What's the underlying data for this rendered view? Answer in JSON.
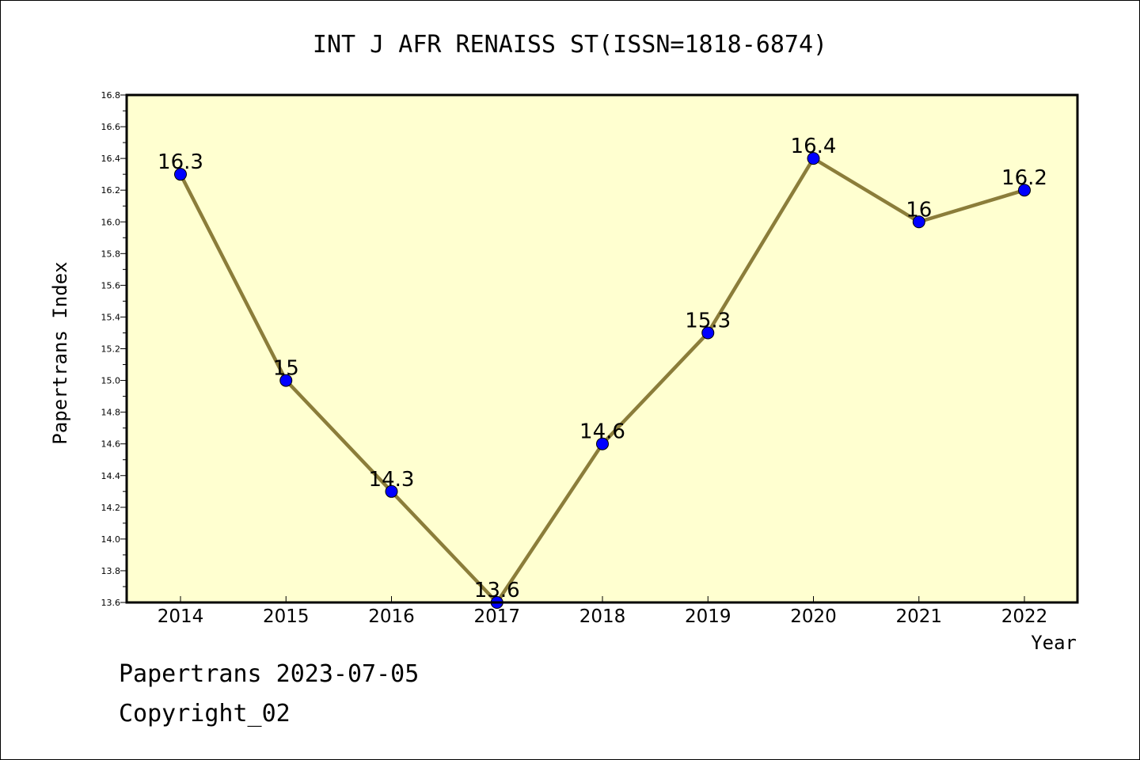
{
  "chart_data": {
    "type": "line",
    "title": "INT J AFR RENAISS ST(ISSN=1818-6874)",
    "xlabel": "Year",
    "ylabel": "Papertrans Index",
    "categories": [
      "2014",
      "2015",
      "2016",
      "2017",
      "2018",
      "2019",
      "2020",
      "2021",
      "2022"
    ],
    "values": [
      16.3,
      15.0,
      14.3,
      13.6,
      14.6,
      15.3,
      16.4,
      16.0,
      16.2
    ],
    "data_labels": [
      "16.3",
      "15",
      "14.3",
      "13.6",
      "14.6",
      "15.3",
      "16.4",
      "16",
      "16.2"
    ],
    "ylim": [
      13.6,
      16.8
    ],
    "yticks": [
      "13.6",
      "13.8",
      "14.0",
      "14.2",
      "14.4",
      "14.6",
      "14.8",
      "15.0",
      "15.2",
      "15.4",
      "15.6",
      "15.8",
      "16.0",
      "16.2",
      "16.4",
      "16.6",
      "16.8"
    ],
    "grid": false,
    "colors": {
      "plot_background": "#ffffd0",
      "line": "#8b7d3a",
      "marker": "#0000ff"
    }
  },
  "footer": {
    "line1": "Papertrans 2023-07-05",
    "line2": "Copyright_02"
  }
}
